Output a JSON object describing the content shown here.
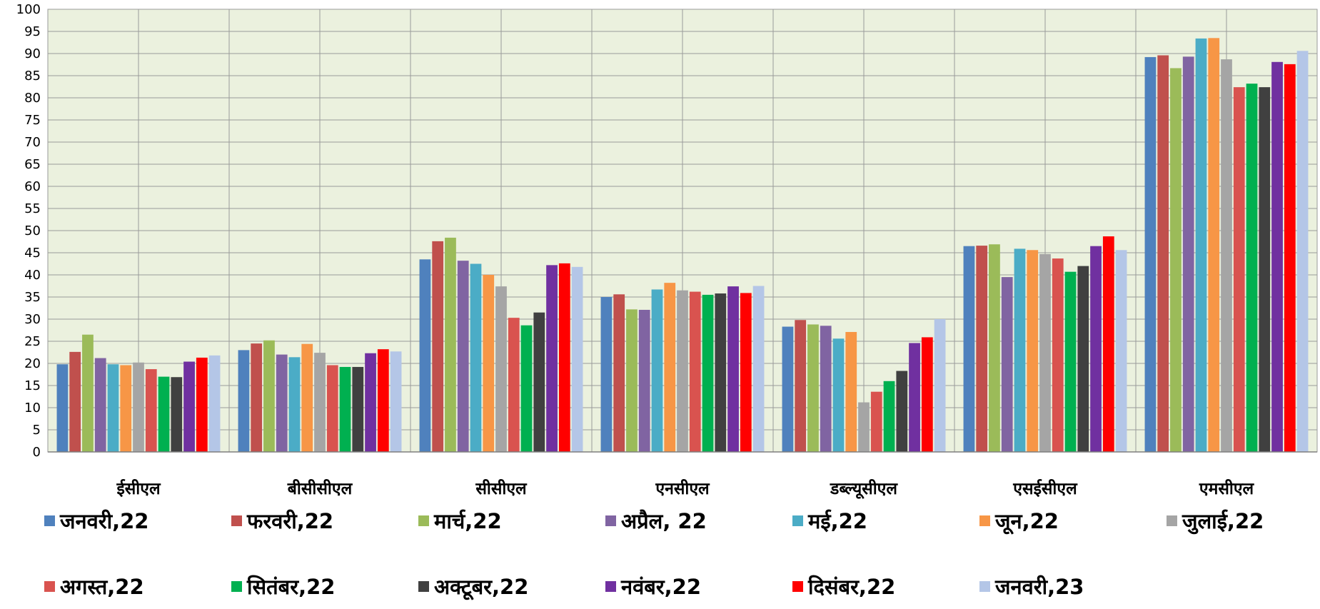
{
  "chart_data": {
    "type": "bar",
    "title": "",
    "xlabel": "",
    "ylabel": "",
    "ylim": [
      0,
      100
    ],
    "yticks": [
      0,
      5,
      10,
      15,
      20,
      25,
      30,
      35,
      40,
      45,
      50,
      55,
      60,
      65,
      70,
      75,
      80,
      85,
      90,
      95,
      100
    ],
    "grid": true,
    "legend_position": "bottom",
    "plot_background": "#ebf1de",
    "categories": [
      "ईसीएल",
      "बीसीसीएल",
      "सीसीएल",
      "एनसीएल",
      "डब्ल्यूसीएल",
      "एसईसीएल",
      "एमसीएल"
    ],
    "series": [
      {
        "name": "जनवरी,22",
        "color": "#4f81bd",
        "values": [
          19.8,
          23.0,
          43.5,
          35.0,
          28.3,
          46.5,
          89.2
        ]
      },
      {
        "name": "फरवरी,22",
        "color": "#c0504d",
        "values": [
          22.6,
          24.5,
          47.6,
          35.6,
          29.8,
          46.6,
          89.6
        ]
      },
      {
        "name": "मार्च,22",
        "color": "#9bbb59",
        "values": [
          26.5,
          25.2,
          48.4,
          32.2,
          28.8,
          46.9,
          86.7
        ]
      },
      {
        "name": "अप्रैल, 22",
        "color": "#8064a2",
        "values": [
          21.2,
          22.0,
          43.2,
          32.1,
          28.5,
          39.5,
          89.3
        ]
      },
      {
        "name": "मई,22",
        "color": "#4bacc6",
        "values": [
          19.8,
          21.4,
          42.5,
          36.7,
          25.6,
          45.9,
          93.4
        ]
      },
      {
        "name": "जून,22",
        "color": "#f79646",
        "values": [
          19.6,
          24.4,
          40.0,
          38.2,
          27.1,
          45.6,
          93.5
        ]
      },
      {
        "name": "जुलाई,22",
        "color": "#a5a5a5",
        "values": [
          20.2,
          22.4,
          37.4,
          36.5,
          11.2,
          44.7,
          88.7
        ]
      },
      {
        "name": "अगस्त,22",
        "color": "#d9534f",
        "values": [
          18.7,
          19.6,
          30.3,
          36.2,
          13.6,
          43.7,
          82.4
        ]
      },
      {
        "name": "सितंबर,22",
        "color": "#00b050",
        "values": [
          17.0,
          19.2,
          28.6,
          35.5,
          16.0,
          40.7,
          83.2
        ]
      },
      {
        "name": "अक्टूबर,22",
        "color": "#404040",
        "values": [
          16.9,
          19.2,
          31.5,
          35.8,
          18.3,
          42.0,
          82.4
        ]
      },
      {
        "name": "नवंबर,22",
        "color": "#7030a0",
        "values": [
          20.4,
          22.3,
          42.2,
          37.4,
          24.6,
          46.5,
          88.1
        ]
      },
      {
        "name": "दिसंबर,22",
        "color": "#ff0000",
        "values": [
          21.3,
          23.2,
          42.6,
          35.9,
          25.9,
          48.7,
          87.6
        ]
      },
      {
        "name": "जनवरी,23",
        "color": "#b4c6e7",
        "values": [
          21.8,
          22.7,
          41.8,
          37.5,
          30.0,
          45.6,
          90.6
        ]
      }
    ]
  }
}
